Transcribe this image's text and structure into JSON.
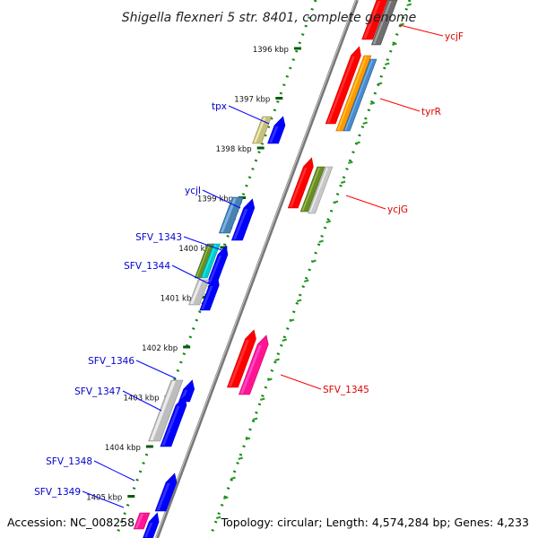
{
  "title": "Shigella flexneri 5 str. 8401, complete genome",
  "footer": {
    "accession": "Accession: NC_008258",
    "topology": "Topology: circular; Length: 4,574,284 bp; Genes: 4,233"
  },
  "colors": {
    "backbone": "#808080",
    "forward_gene": "#ff0000",
    "reverse_gene": "#0000ff",
    "forward_label": "#e00000",
    "reverse_label": "#0000cc",
    "tick_dots": "#007700",
    "cog_dots": "#009900"
  },
  "kbp_ticks": [
    "1396 kbp",
    "1397 kbp",
    "1398 kbp",
    "1399 kbp",
    "1400 kbp",
    "1401 kbp",
    "1402 kbp",
    "1403 kbp",
    "1404 kbp",
    "1405 kbp"
  ],
  "forward_labels": [
    {
      "text": "ycjF",
      "kbp": 1395.66
    },
    {
      "text": "tyrR",
      "kbp": 1396.6
    },
    {
      "text": "ycjG",
      "kbp": 1398.63
    },
    {
      "text": "SFV_1345",
      "kbp": 1402.45
    }
  ],
  "reverse_labels": [
    {
      "text": "tpx",
      "kbp": 1397.32
    },
    {
      "text": "ycjI",
      "kbp": 1399.05
    },
    {
      "text": "SFV_1343",
      "kbp": 1399.9
    },
    {
      "text": "SFV_1344",
      "kbp": 1400.5
    },
    {
      "text": "SFV_1346",
      "kbp": 1402.45
    },
    {
      "text": "SFV_1347",
      "kbp": 1402.95
    },
    {
      "text": "SFV_1348",
      "kbp": 1404.4
    },
    {
      "text": "SFV_1349",
      "kbp": 1404.95
    }
  ]
}
